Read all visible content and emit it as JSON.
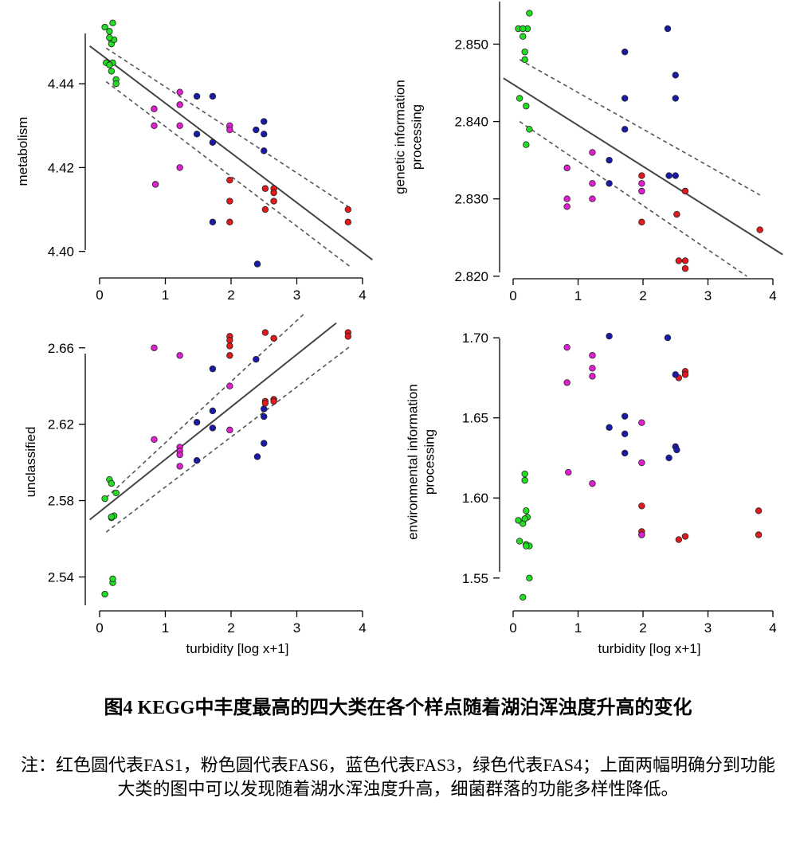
{
  "figure": {
    "title": "图4 KEGG中丰度最高的四大类在各个样点随着湖泊浑浊度升高的变化",
    "note": "注：红色圆代表FAS1，粉色圆代表FAS6，蓝色代表FAS3，绿色代表FAS4；上面两幅明确分到功能大类的图中可以发现随着湖水浑浊度升高，细菌群落的功能多样性降低。"
  },
  "colors": {
    "red": "#e31a1c",
    "magenta": "#e020d0",
    "blue": "#1a1aa8",
    "green": "#22dd22"
  },
  "chart_data": [
    {
      "type": "scatter",
      "ylabel": [
        "metabolism"
      ],
      "xlabel": "",
      "xlim": [
        0,
        4
      ],
      "ylim": [
        4.395,
        4.452
      ],
      "xticks": [
        "0",
        "1",
        "2",
        "3",
        "4"
      ],
      "yticks": [
        "4.40",
        "4.42",
        "4.44"
      ],
      "ytick_values": [
        4.4,
        4.42,
        4.44
      ],
      "fit": {
        "x": [
          -0.15,
          4.15
        ],
        "y": [
          4.449,
          4.398
        ]
      },
      "ci_upper": {
        "x": [
          0.1,
          3.8
        ],
        "y": [
          4.4485,
          4.4105
        ]
      },
      "ci_lower": {
        "x": [
          0.1,
          3.8
        ],
        "y": [
          4.4405,
          4.3965
        ]
      },
      "series": [
        {
          "color": "red",
          "x": [
            1.98,
            1.98,
            1.98,
            2.52,
            2.52,
            2.65,
            2.65,
            2.65,
            3.78,
            3.78
          ],
          "y": [
            4.417,
            4.412,
            4.407,
            4.415,
            4.41,
            4.415,
            4.414,
            4.412,
            4.41,
            4.407
          ]
        },
        {
          "color": "magenta",
          "x": [
            0.83,
            0.83,
            0.85,
            1.22,
            1.22,
            1.22,
            1.22,
            1.98,
            1.98
          ],
          "y": [
            4.434,
            4.43,
            4.416,
            4.438,
            4.435,
            4.43,
            4.42,
            4.43,
            4.429
          ]
        },
        {
          "color": "blue",
          "x": [
            1.48,
            1.48,
            1.72,
            1.72,
            1.72,
            2.38,
            2.4,
            2.5,
            2.5,
            2.5
          ],
          "y": [
            4.437,
            4.428,
            4.437,
            4.426,
            4.407,
            4.429,
            4.397,
            4.431,
            4.428,
            4.424
          ]
        },
        {
          "color": "green",
          "x": [
            0.08,
            0.1,
            0.15,
            0.18,
            0.18,
            0.2,
            0.2,
            0.22,
            0.25,
            0.25,
            0.15,
            0.15,
            0.18
          ],
          "y": [
            4.4535,
            4.445,
            4.4525,
            4.4505,
            4.4495,
            4.445,
            4.4545,
            4.4505,
            4.441,
            4.44,
            4.451,
            4.4445,
            4.443
          ]
        }
      ]
    },
    {
      "type": "scatter",
      "ylabel": [
        "genetic information",
        "processing"
      ],
      "xlabel": "",
      "xlim": [
        0,
        4
      ],
      "ylim": [
        2.8205,
        2.8555
      ],
      "xticks": [
        "0",
        "1",
        "2",
        "3",
        "4"
      ],
      "yticks": [
        "2.820",
        "2.830",
        "2.840",
        "2.850"
      ],
      "ytick_values": [
        2.82,
        2.83,
        2.84,
        2.85
      ],
      "fit": {
        "x": [
          -0.15,
          4.15
        ],
        "y": [
          2.8456,
          2.8228
        ]
      },
      "ci_upper": {
        "x": [
          0.1,
          3.8
        ],
        "y": [
          2.848,
          2.8305
        ]
      },
      "ci_lower": {
        "x": [
          0.1,
          3.6
        ],
        "y": [
          2.84,
          2.82
        ]
      },
      "series": [
        {
          "color": "red",
          "x": [
            1.98,
            1.98,
            2.52,
            2.55,
            2.65,
            2.65,
            2.65,
            3.8
          ],
          "y": [
            2.833,
            2.827,
            2.828,
            2.822,
            2.831,
            2.822,
            2.821,
            2.826
          ]
        },
        {
          "color": "magenta",
          "x": [
            0.83,
            0.83,
            0.83,
            1.22,
            1.22,
            1.22,
            1.98,
            1.98
          ],
          "y": [
            2.834,
            2.83,
            2.829,
            2.836,
            2.832,
            2.83,
            2.832,
            2.831
          ]
        },
        {
          "color": "blue",
          "x": [
            1.48,
            1.48,
            1.72,
            1.72,
            1.72,
            2.38,
            2.4,
            2.5,
            2.5,
            2.5
          ],
          "y": [
            2.835,
            2.832,
            2.849,
            2.843,
            2.839,
            2.852,
            2.833,
            2.846,
            2.843,
            2.833
          ]
        },
        {
          "color": "green",
          "x": [
            0.08,
            0.1,
            0.15,
            0.18,
            0.18,
            0.2,
            0.2,
            0.22,
            0.25,
            0.25,
            0.15
          ],
          "y": [
            2.852,
            2.843,
            2.851,
            2.849,
            2.848,
            2.842,
            2.837,
            2.852,
            2.854,
            2.839,
            2.852
          ]
        }
      ]
    },
    {
      "type": "scatter",
      "ylabel": [
        "unclassified"
      ],
      "xlabel": "turbidity [log x+1]",
      "xlim": [
        0,
        4
      ],
      "ylim": [
        2.526,
        2.672
      ],
      "xticks": [
        "0",
        "1",
        "2",
        "3",
        "4"
      ],
      "yticks": [
        "2.54",
        "2.58",
        "2.62",
        "2.66"
      ],
      "ytick_values": [
        2.54,
        2.58,
        2.62,
        2.66
      ],
      "fit": {
        "x": [
          -0.15,
          3.6
        ],
        "y": [
          2.57,
          2.673
        ]
      },
      "ci_upper": {
        "x": [
          0.1,
          3.1
        ],
        "y": [
          2.5815,
          2.6775
        ]
      },
      "ci_lower": {
        "x": [
          0.1,
          3.8
        ],
        "y": [
          2.5635,
          2.6605
        ]
      },
      "series": [
        {
          "color": "red",
          "x": [
            1.98,
            1.98,
            1.98,
            1.98,
            2.52,
            2.52,
            2.52,
            2.65,
            2.65,
            2.65,
            3.78,
            3.78
          ],
          "y": [
            2.666,
            2.664,
            2.661,
            2.656,
            2.668,
            2.632,
            2.631,
            2.665,
            2.633,
            2.632,
            2.668,
            2.666
          ]
        },
        {
          "color": "magenta",
          "x": [
            0.83,
            0.83,
            1.22,
            1.22,
            1.22,
            1.22,
            1.22,
            1.98,
            1.98
          ],
          "y": [
            2.66,
            2.612,
            2.656,
            2.608,
            2.606,
            2.604,
            2.598,
            2.64,
            2.617
          ]
        },
        {
          "color": "blue",
          "x": [
            1.48,
            1.48,
            1.72,
            1.72,
            1.72,
            2.38,
            2.4,
            2.5,
            2.5,
            2.5
          ],
          "y": [
            2.621,
            2.601,
            2.649,
            2.627,
            2.618,
            2.654,
            2.603,
            2.628,
            2.624,
            2.61
          ]
        },
        {
          "color": "green",
          "x": [
            0.08,
            0.08,
            0.15,
            0.18,
            0.18,
            0.2,
            0.2,
            0.22,
            0.25,
            0.18
          ],
          "y": [
            2.581,
            2.531,
            2.591,
            2.589,
            2.571,
            2.537,
            2.539,
            2.572,
            2.584,
            2.5715
          ]
        }
      ]
    },
    {
      "type": "scatter",
      "ylabel": [
        "environmental information",
        "processing"
      ],
      "xlabel": "turbidity [log x+1]",
      "xlim": [
        0,
        4
      ],
      "ylim": [
        1.534,
        1.708
      ],
      "xticks": [
        "0",
        "1",
        "2",
        "3",
        "4"
      ],
      "yticks": [
        "1.55",
        "1.60",
        "1.65",
        "1.70"
      ],
      "ytick_values": [
        1.55,
        1.6,
        1.65,
        1.7
      ],
      "series": [
        {
          "color": "red",
          "x": [
            1.98,
            1.98,
            1.98,
            2.55,
            2.55,
            2.65,
            2.65,
            2.65,
            3.78,
            3.78
          ],
          "y": [
            1.595,
            1.579,
            1.577,
            1.675,
            1.574,
            1.679,
            1.677,
            1.576,
            1.592,
            1.577
          ]
        },
        {
          "color": "magenta",
          "x": [
            0.83,
            0.83,
            0.85,
            1.22,
            1.22,
            1.22,
            1.22,
            1.98,
            1.98,
            1.98
          ],
          "y": [
            1.694,
            1.672,
            1.616,
            1.689,
            1.681,
            1.676,
            1.609,
            1.647,
            1.622,
            1.577
          ]
        },
        {
          "color": "blue",
          "x": [
            1.48,
            1.48,
            1.72,
            1.72,
            1.72,
            2.38,
            2.4,
            2.5,
            2.5,
            2.52
          ],
          "y": [
            1.701,
            1.644,
            1.651,
            1.64,
            1.628,
            1.7,
            1.625,
            1.677,
            1.632,
            1.63
          ]
        },
        {
          "color": "green",
          "x": [
            0.08,
            0.1,
            0.15,
            0.18,
            0.18,
            0.2,
            0.2,
            0.22,
            0.25,
            0.25,
            0.15,
            0.18,
            0.2
          ],
          "y": [
            1.586,
            1.573,
            1.584,
            1.615,
            1.611,
            1.592,
            1.571,
            1.588,
            1.57,
            1.55,
            1.538,
            1.587,
            1.57
          ]
        }
      ]
    }
  ]
}
